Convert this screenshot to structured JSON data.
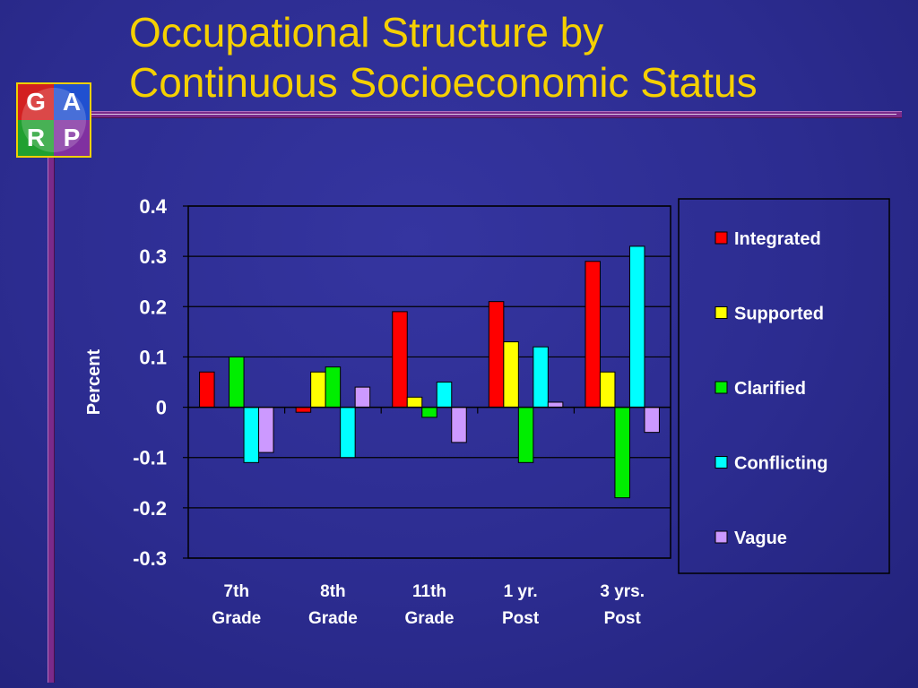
{
  "slide": {
    "title_line1": "Occupational Structure by",
    "title_line2": "Continuous Socioeconomic Status",
    "logo": {
      "letters": [
        "G",
        "A",
        "R",
        "P"
      ],
      "colors": [
        "#d32020",
        "#2050d0",
        "#20a030",
        "#8030a0"
      ]
    },
    "accent_color": "#f5d000"
  },
  "chart_data": {
    "type": "bar",
    "title": "",
    "ylabel": "Percent",
    "xlabel": "",
    "ylim": [
      -0.3,
      0.4
    ],
    "yticks": [
      0.4,
      0.3,
      0.2,
      0.1,
      0,
      -0.1,
      -0.2,
      -0.3
    ],
    "ytick_labels": [
      "0.4",
      "0.3",
      "0.2",
      "0.1",
      "0",
      "-0.1",
      "-0.2",
      "-0.3"
    ],
    "grid": true,
    "legend_position": "right",
    "categories": [
      [
        "7th",
        "Grade"
      ],
      [
        "8th",
        "Grade"
      ],
      [
        "11th",
        "Grade"
      ],
      [
        "1 yr.",
        "Post"
      ],
      [
        "3 yrs.",
        "Post"
      ]
    ],
    "series": [
      {
        "name": "Integrated",
        "color": "#ff0000",
        "values": [
          0.07,
          -0.01,
          0.19,
          0.21,
          0.29
        ]
      },
      {
        "name": "Supported",
        "color": "#ffff00",
        "values": [
          0.0,
          0.07,
          0.02,
          0.13,
          0.07
        ]
      },
      {
        "name": "Clarified",
        "color": "#00ee00",
        "values": [
          0.1,
          0.08,
          -0.02,
          -0.11,
          -0.18
        ]
      },
      {
        "name": "Conflicting",
        "color": "#00ffff",
        "values": [
          -0.11,
          -0.1,
          0.05,
          0.12,
          0.32
        ]
      },
      {
        "name": "Vague",
        "color": "#cc99ff",
        "values": [
          -0.09,
          0.04,
          -0.07,
          0.01,
          -0.05
        ]
      }
    ]
  }
}
